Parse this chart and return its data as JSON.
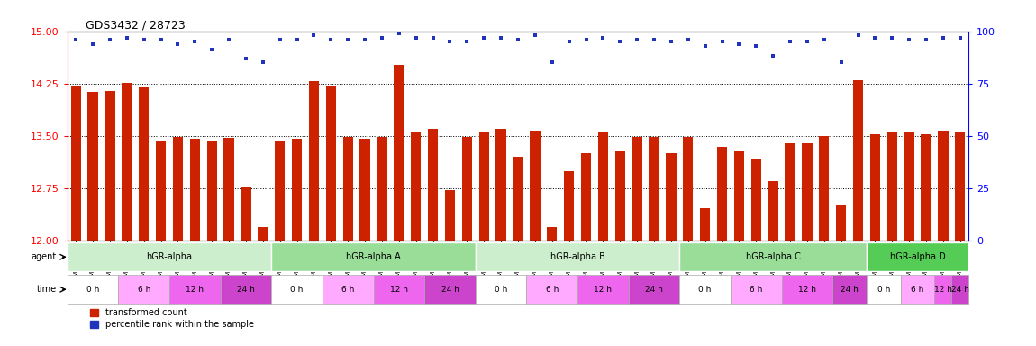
{
  "title": "GDS3432 / 28723",
  "bar_vals": [
    14.22,
    14.13,
    14.14,
    14.26,
    14.19,
    13.42,
    13.48,
    13.46,
    13.44,
    13.47,
    12.76,
    12.2,
    13.44,
    13.46,
    14.28,
    14.22,
    13.48,
    13.46,
    13.48,
    14.52,
    13.55,
    13.6,
    12.72,
    13.48,
    13.56,
    13.6,
    13.2,
    13.58,
    12.2,
    13.0,
    13.26,
    13.55,
    13.28,
    13.48,
    13.48,
    13.26,
    13.48,
    12.47,
    13.35,
    13.28,
    13.16,
    12.85,
    13.4,
    13.4,
    13.5,
    12.5,
    14.3,
    13.53,
    13.55,
    13.55,
    13.53,
    13.58,
    13.55
  ],
  "perc_vals": [
    96,
    94,
    96,
    97,
    96,
    96,
    94,
    95,
    91,
    96,
    87,
    85,
    96,
    96,
    98,
    96,
    96,
    96,
    97,
    99,
    97,
    97,
    95,
    95,
    97,
    97,
    96,
    98,
    85,
    95,
    96,
    97,
    95,
    96,
    96,
    95,
    96,
    93,
    95,
    94,
    93,
    88,
    95,
    95,
    96,
    85,
    98,
    97,
    97,
    96,
    96,
    97,
    97
  ],
  "sample_labels": [
    "GSM154259",
    "GSM154260",
    "GSM154261",
    "GSM154274",
    "GSM154275",
    "GSM154276",
    "GSM154289",
    "GSM154290",
    "GSM154291",
    "GSM154304",
    "GSM154305",
    "GSM154306",
    "GSM154263",
    "GSM154264",
    "GSM154277",
    "GSM154278",
    "GSM154279",
    "GSM154292",
    "GSM154293",
    "GSM154294",
    "GSM154307",
    "GSM154308",
    "GSM154309",
    "GSM154282",
    "GSM154265",
    "GSM154266",
    "GSM154267",
    "GSM154280",
    "GSM154281",
    "GSM154295",
    "GSM154296",
    "GSM154297",
    "GSM154310",
    "GSM154311",
    "GSM154312",
    "GSM154268",
    "GSM154269",
    "GSM154270",
    "GSM154283",
    "GSM154284",
    "GSM154285",
    "GSM154298",
    "GSM154299",
    "GSM154300",
    "GSM154313",
    "GSM154314",
    "GSM154315",
    "GSM154271",
    "GSM154272",
    "GSM154273",
    "GSM154286",
    "GSM154287",
    "GSM154318"
  ],
  "ylim_left": [
    12,
    15
  ],
  "ylim_right": [
    0,
    100
  ],
  "yticks_left": [
    12,
    12.75,
    13.5,
    14.25,
    15
  ],
  "yticks_right": [
    0,
    25,
    50,
    75,
    100
  ],
  "bar_color": "#cc2200",
  "dot_color": "#2233bb",
  "agent_defs": [
    {
      "label": "hGR-alpha",
      "start": 0,
      "end": 12,
      "color": "#cceecc"
    },
    {
      "label": "hGR-alpha A",
      "start": 12,
      "end": 24,
      "color": "#99dd99"
    },
    {
      "label": "hGR-alpha B",
      "start": 24,
      "end": 36,
      "color": "#cceecc"
    },
    {
      "label": "hGR-alpha C",
      "start": 36,
      "end": 47,
      "color": "#99dd99"
    },
    {
      "label": "hGR-alpha D",
      "start": 47,
      "end": 53,
      "color": "#55cc55"
    }
  ],
  "time_colors": [
    "#ffffff",
    "#ffaaff",
    "#ee66ee",
    "#cc44cc"
  ],
  "time_labels": [
    "0 h",
    "6 h",
    "12 h",
    "24 h"
  ],
  "legend_bar_label": "transformed count",
  "legend_dot_label": "percentile rank within the sample",
  "background_color": "#ffffff"
}
